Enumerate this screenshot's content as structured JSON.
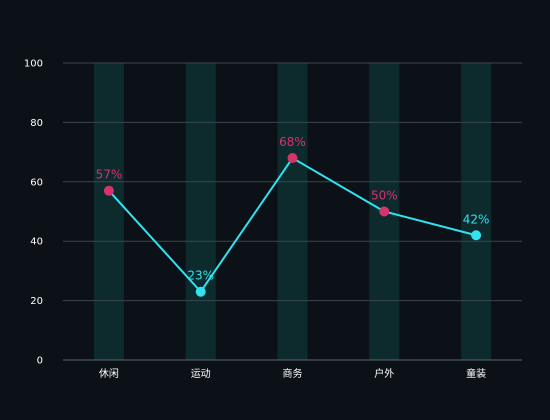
{
  "chart_data": {
    "type": "line",
    "title": "",
    "xlabel": "",
    "ylabel": "",
    "categories": [
      "休闲",
      "运动",
      "商务",
      "户外",
      "童装"
    ],
    "values": [
      57,
      23,
      68,
      50,
      42
    ],
    "value_labels": [
      "57%",
      "23%",
      "68%",
      "50%",
      "42%"
    ],
    "ylim": [
      0,
      100
    ],
    "yticks": [
      "0",
      "20",
      "40",
      "60",
      "80",
      "100"
    ],
    "grid": true,
    "legend": "none",
    "point_colors": [
      "#d6336c",
      "#2fe3f0",
      "#d6336c",
      "#d6336c",
      "#2fe3f0"
    ],
    "colors": {
      "line": "#2fe3f0",
      "band": "#0d2a2d",
      "grid": "#3a474f",
      "background": "#0b1116"
    }
  }
}
